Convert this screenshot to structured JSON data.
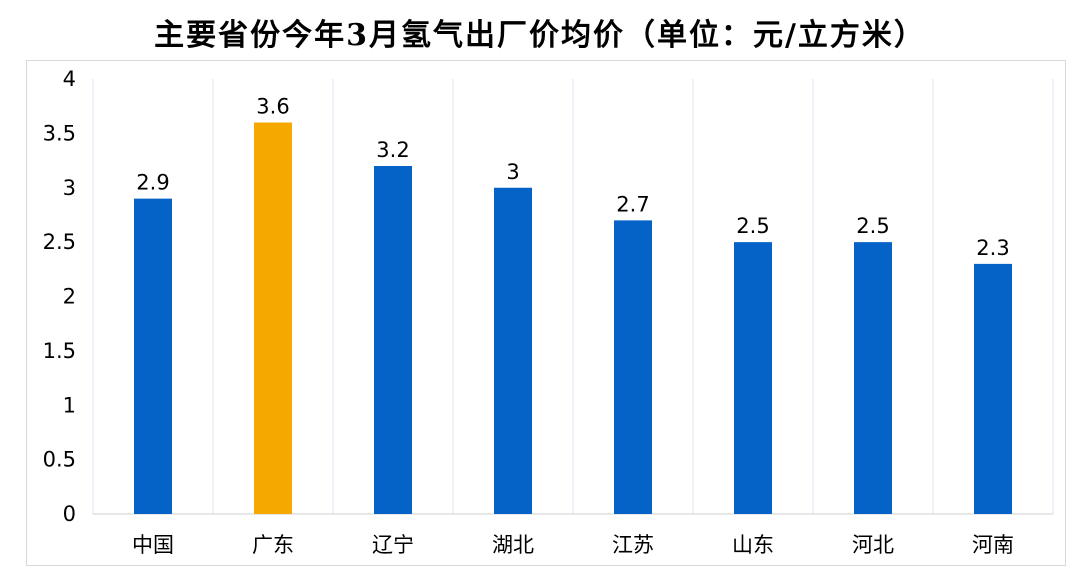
{
  "title": "主要省份今年3月氢气出厂价均价（单位：元/立方米）",
  "chart_data": {
    "type": "bar",
    "title": "主要省份今年3月氢气出厂价均价（单位：元/立方米）",
    "categories": [
      "中国",
      "广东",
      "辽宁",
      "湖北",
      "江苏",
      "山东",
      "河北",
      "河南"
    ],
    "values": [
      2.9,
      3.6,
      3.2,
      3,
      2.7,
      2.5,
      2.5,
      2.3
    ],
    "value_labels": [
      "2.9",
      "3.6",
      "3.2",
      "3",
      "2.7",
      "2.5",
      "2.5",
      "2.3"
    ],
    "ylim": [
      0,
      4
    ],
    "yticks": [
      "0",
      "0.5",
      "1",
      "1.5",
      "2",
      "2.5",
      "3",
      "3.5",
      "4"
    ],
    "grid": "vertical",
    "colors": {
      "default": "#0563C8",
      "highlight": "#F5A800",
      "highlight_category": "广东"
    }
  }
}
